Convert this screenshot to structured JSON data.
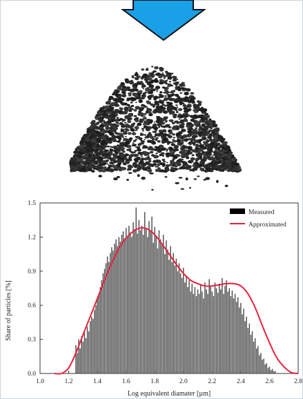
{
  "colors": {
    "arrow": "#1aa0e6",
    "arrow_stroke": "#111111",
    "bars": "#4d4d4d",
    "curve": "#e8203c",
    "legend_swatch": "#000000",
    "granulate": "#262626"
  },
  "icons": {
    "down_arrow": "down-arrow-icon",
    "granulate_photo": "granulate-pile-icon"
  },
  "chart_data": {
    "type": "bar",
    "xlabel": "Log equivalent diamater [µm]",
    "ylabel": "Share of particles [%]",
    "xlim": [
      1.0,
      2.8
    ],
    "ylim": [
      0.0,
      1.5
    ],
    "xticks": [
      "1.0",
      "1.2",
      "1.4",
      "1.6",
      "1.8",
      "2.0",
      "2.2",
      "2.4",
      "2.6",
      "2.8"
    ],
    "yticks": [
      "0.0",
      "0.3",
      "0.6",
      "0.9",
      "1.2",
      "1.5"
    ],
    "legend_position": "top-right",
    "legend": [
      "Measured",
      "Approximated"
    ],
    "series": [
      {
        "name": "Measured",
        "kind": "bar",
        "bin_start": 1.25,
        "bin_width": 0.01,
        "values": [
          0.25,
          0.18,
          0.3,
          0.22,
          0.33,
          0.28,
          0.36,
          0.31,
          0.41,
          0.37,
          0.46,
          0.5,
          0.48,
          0.56,
          0.6,
          0.66,
          0.7,
          0.76,
          0.82,
          0.88,
          0.92,
          0.97,
          1.03,
          0.98,
          1.06,
          1.11,
          1.08,
          1.14,
          1.18,
          1.12,
          1.2,
          1.16,
          1.22,
          1.25,
          1.19,
          1.28,
          1.21,
          1.3,
          1.24,
          1.2,
          1.33,
          1.27,
          1.46,
          1.23,
          1.35,
          1.26,
          1.3,
          1.22,
          1.42,
          1.28,
          1.2,
          1.34,
          1.25,
          1.38,
          1.15,
          1.29,
          1.21,
          1.1,
          1.26,
          1.18,
          1.13,
          1.22,
          1.05,
          1.17,
          1.09,
          1.0,
          1.12,
          0.98,
          1.06,
          0.95,
          1.01,
          0.9,
          0.97,
          0.88,
          0.84,
          0.93,
          0.8,
          0.86,
          0.76,
          0.82,
          0.72,
          0.79,
          0.7,
          0.76,
          0.68,
          0.74,
          0.7,
          0.78,
          0.72,
          0.66,
          0.8,
          0.74,
          0.7,
          0.83,
          0.77,
          0.72,
          0.68,
          0.8,
          0.75,
          0.71,
          0.79,
          0.74,
          0.84,
          0.7,
          0.77,
          0.82,
          0.72,
          0.75,
          0.68,
          0.73,
          0.66,
          0.7,
          0.63,
          0.67,
          0.58,
          0.62,
          0.52,
          0.57,
          0.46,
          0.5,
          0.4,
          0.44,
          0.34,
          0.37,
          0.28,
          0.31,
          0.22,
          0.24,
          0.16,
          0.18,
          0.12,
          0.13,
          0.08,
          0.09,
          0.05,
          0.06,
          0.03,
          0.04,
          0.02,
          0.02
        ]
      },
      {
        "name": "Approximated",
        "kind": "line",
        "x": [
          1.1,
          1.15,
          1.2,
          1.25,
          1.3,
          1.35,
          1.4,
          1.45,
          1.5,
          1.55,
          1.6,
          1.65,
          1.7,
          1.75,
          1.8,
          1.85,
          1.9,
          1.95,
          2.0,
          2.05,
          2.1,
          2.15,
          2.2,
          2.25,
          2.3,
          2.35,
          2.4,
          2.45,
          2.5,
          2.55,
          2.6,
          2.65,
          2.7,
          2.75,
          2.8
        ],
        "y": [
          0.0,
          0.0,
          0.05,
          0.18,
          0.34,
          0.5,
          0.66,
          0.82,
          0.97,
          1.1,
          1.19,
          1.25,
          1.28,
          1.27,
          1.22,
          1.14,
          1.05,
          0.96,
          0.88,
          0.82,
          0.79,
          0.77,
          0.77,
          0.78,
          0.79,
          0.79,
          0.77,
          0.7,
          0.58,
          0.42,
          0.27,
          0.14,
          0.06,
          0.01,
          0.0
        ]
      }
    ]
  }
}
